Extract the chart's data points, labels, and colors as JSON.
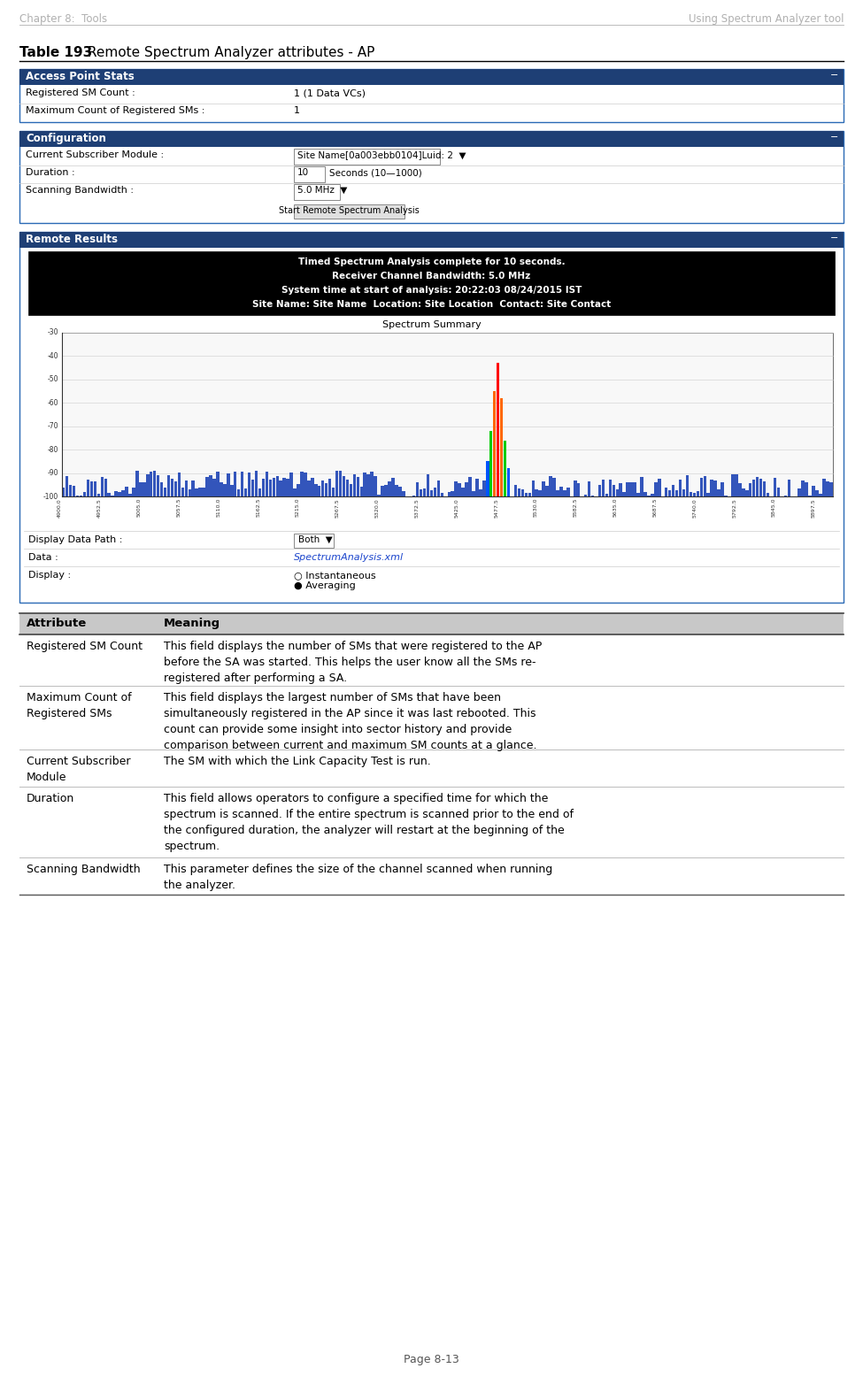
{
  "header_left": "Chapter 8:  Tools",
  "header_right": "Using Spectrum Analyzer tool",
  "table_title_bold": "Table 193",
  "table_title_rest": " Remote Spectrum Analyzer attributes - AP",
  "section1_header": "Access Point Stats",
  "section1_rows": [
    [
      "Registered SM Count :",
      "1 (1 Data VCs)"
    ],
    [
      "Maximum Count of Registered SMs :",
      "1"
    ]
  ],
  "section2_header": "Configuration",
  "section2_rows": [
    [
      "Current Subscriber Module :",
      "Site Name[0a003ebb0104]Luid: 2  ▼"
    ],
    [
      "Duration :",
      "10"
    ],
    [
      "Scanning Bandwidth :",
      "5.0 MHz  ▼"
    ]
  ],
  "section2_duration_suffix": "Seconds (10—1000)",
  "section2_button": "Start Remote Spectrum Analysis",
  "section3_header": "Remote Results",
  "spectrum_text_lines": [
    "Timed Spectrum Analysis complete for 10 seconds.",
    "Receiver Channel Bandwidth: 5.0 MHz",
    "System time at start of analysis: 20:22:03 08/24/2015 IST",
    "Site Name: Site Name  Location: Site Location  Contact: Site Contact"
  ],
  "spectrum_subtitle": "Spectrum Summary",
  "display_rows": [
    [
      "Display Data Path :",
      "Both  ▼"
    ],
    [
      "Data :",
      "SpectrumAnalysis.xml"
    ],
    [
      "Display :",
      "○ Instantaneous\n● Averaging"
    ]
  ],
  "table_header": [
    "Attribute",
    "Meaning"
  ],
  "table_rows": [
    [
      "Registered SM Count",
      "This field displays the number of SMs that were registered to the AP\nbefore the SA was started. This helps the user know all the SMs re-\nregistered after performing a SA."
    ],
    [
      "Maximum Count of\nRegistered SMs",
      "This field displays the largest number of SMs that have been\nsimultaneously registered in the AP since it was last rebooted. This\ncount can provide some insight into sector history and provide\ncomparison between current and maximum SM counts at a glance."
    ],
    [
      "Current Subscriber\nModule",
      "The SM with which the Link Capacity Test is run."
    ],
    [
      "Duration",
      "This field allows operators to configure a specified time for which the\nspectrum is scanned. If the entire spectrum is scanned prior to the end of\nthe configured duration, the analyzer will restart at the beginning of the\nspectrum."
    ],
    [
      "Scanning Bandwidth",
      "This parameter defines the size of the channel scanned when running\nthe analyzer."
    ]
  ],
  "footer": "Page 8-13",
  "header_color": "#b0b0b0",
  "section_header_bg": "#1e3f75",
  "section_header_fg": "#ffffff",
  "table_header_bg": "#c8c8c8",
  "border_color": "#2a6ab5",
  "row_divider_color": "#cccccc"
}
